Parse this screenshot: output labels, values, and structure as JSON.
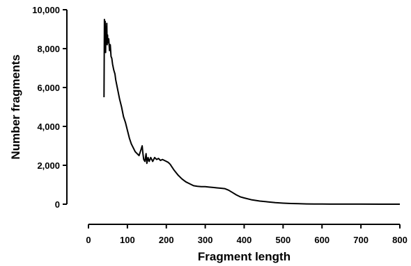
{
  "chart_data": {
    "type": "line",
    "title": "",
    "xlabel": "Fragment length",
    "ylabel": "Number fragments",
    "xlim": [
      0,
      800
    ],
    "ylim": [
      0,
      10000
    ],
    "grid": false,
    "x_ticks": [
      0,
      100,
      200,
      300,
      400,
      500,
      600,
      700,
      800
    ],
    "x_tick_labels": [
      "0",
      "100",
      "200",
      "300",
      "400",
      "500",
      "600",
      "700",
      "800"
    ],
    "y_ticks": [
      0,
      2000,
      4000,
      6000,
      8000,
      10000
    ],
    "y_tick_labels": [
      "0",
      "2,000",
      "4,000",
      "6,000",
      "8,000",
      "10,000"
    ],
    "series": [
      {
        "x": [
          40,
          41,
          42,
          43,
          44,
          45,
          46,
          47,
          48,
          49,
          50,
          52,
          54,
          56,
          58,
          60,
          62,
          65,
          68,
          70,
          75,
          80,
          85,
          90,
          95,
          100,
          105,
          110,
          115,
          120,
          125,
          130,
          135,
          138,
          140,
          142,
          145,
          148,
          150,
          153,
          156,
          160,
          165,
          170,
          175,
          180,
          185,
          190,
          195,
          200,
          205,
          210,
          215,
          220,
          230,
          240,
          250,
          260,
          270,
          280,
          290,
          300,
          310,
          320,
          330,
          340,
          350,
          360,
          370,
          380,
          390,
          400,
          420,
          440,
          460,
          480,
          500,
          520,
          540,
          560,
          580,
          600,
          620,
          650,
          700,
          750,
          800
        ],
        "y": [
          5500,
          9500,
          8000,
          9400,
          7800,
          9100,
          8600,
          9300,
          8200,
          8700,
          8300,
          8500,
          7900,
          8200,
          7600,
          7500,
          7200,
          6900,
          6700,
          6400,
          5900,
          5400,
          5000,
          4500,
          4200,
          3800,
          3400,
          3100,
          2900,
          2700,
          2600,
          2500,
          2800,
          3000,
          2600,
          2300,
          2200,
          2600,
          2100,
          2400,
          2200,
          2400,
          2200,
          2400,
          2300,
          2350,
          2250,
          2300,
          2250,
          2200,
          2150,
          2050,
          1900,
          1750,
          1500,
          1300,
          1150,
          1050,
          950,
          920,
          900,
          900,
          880,
          860,
          840,
          820,
          800,
          720,
          600,
          480,
          380,
          320,
          220,
          160,
          120,
          80,
          55,
          35,
          25,
          15,
          10,
          8,
          5,
          3,
          2,
          1,
          0
        ]
      }
    ]
  }
}
